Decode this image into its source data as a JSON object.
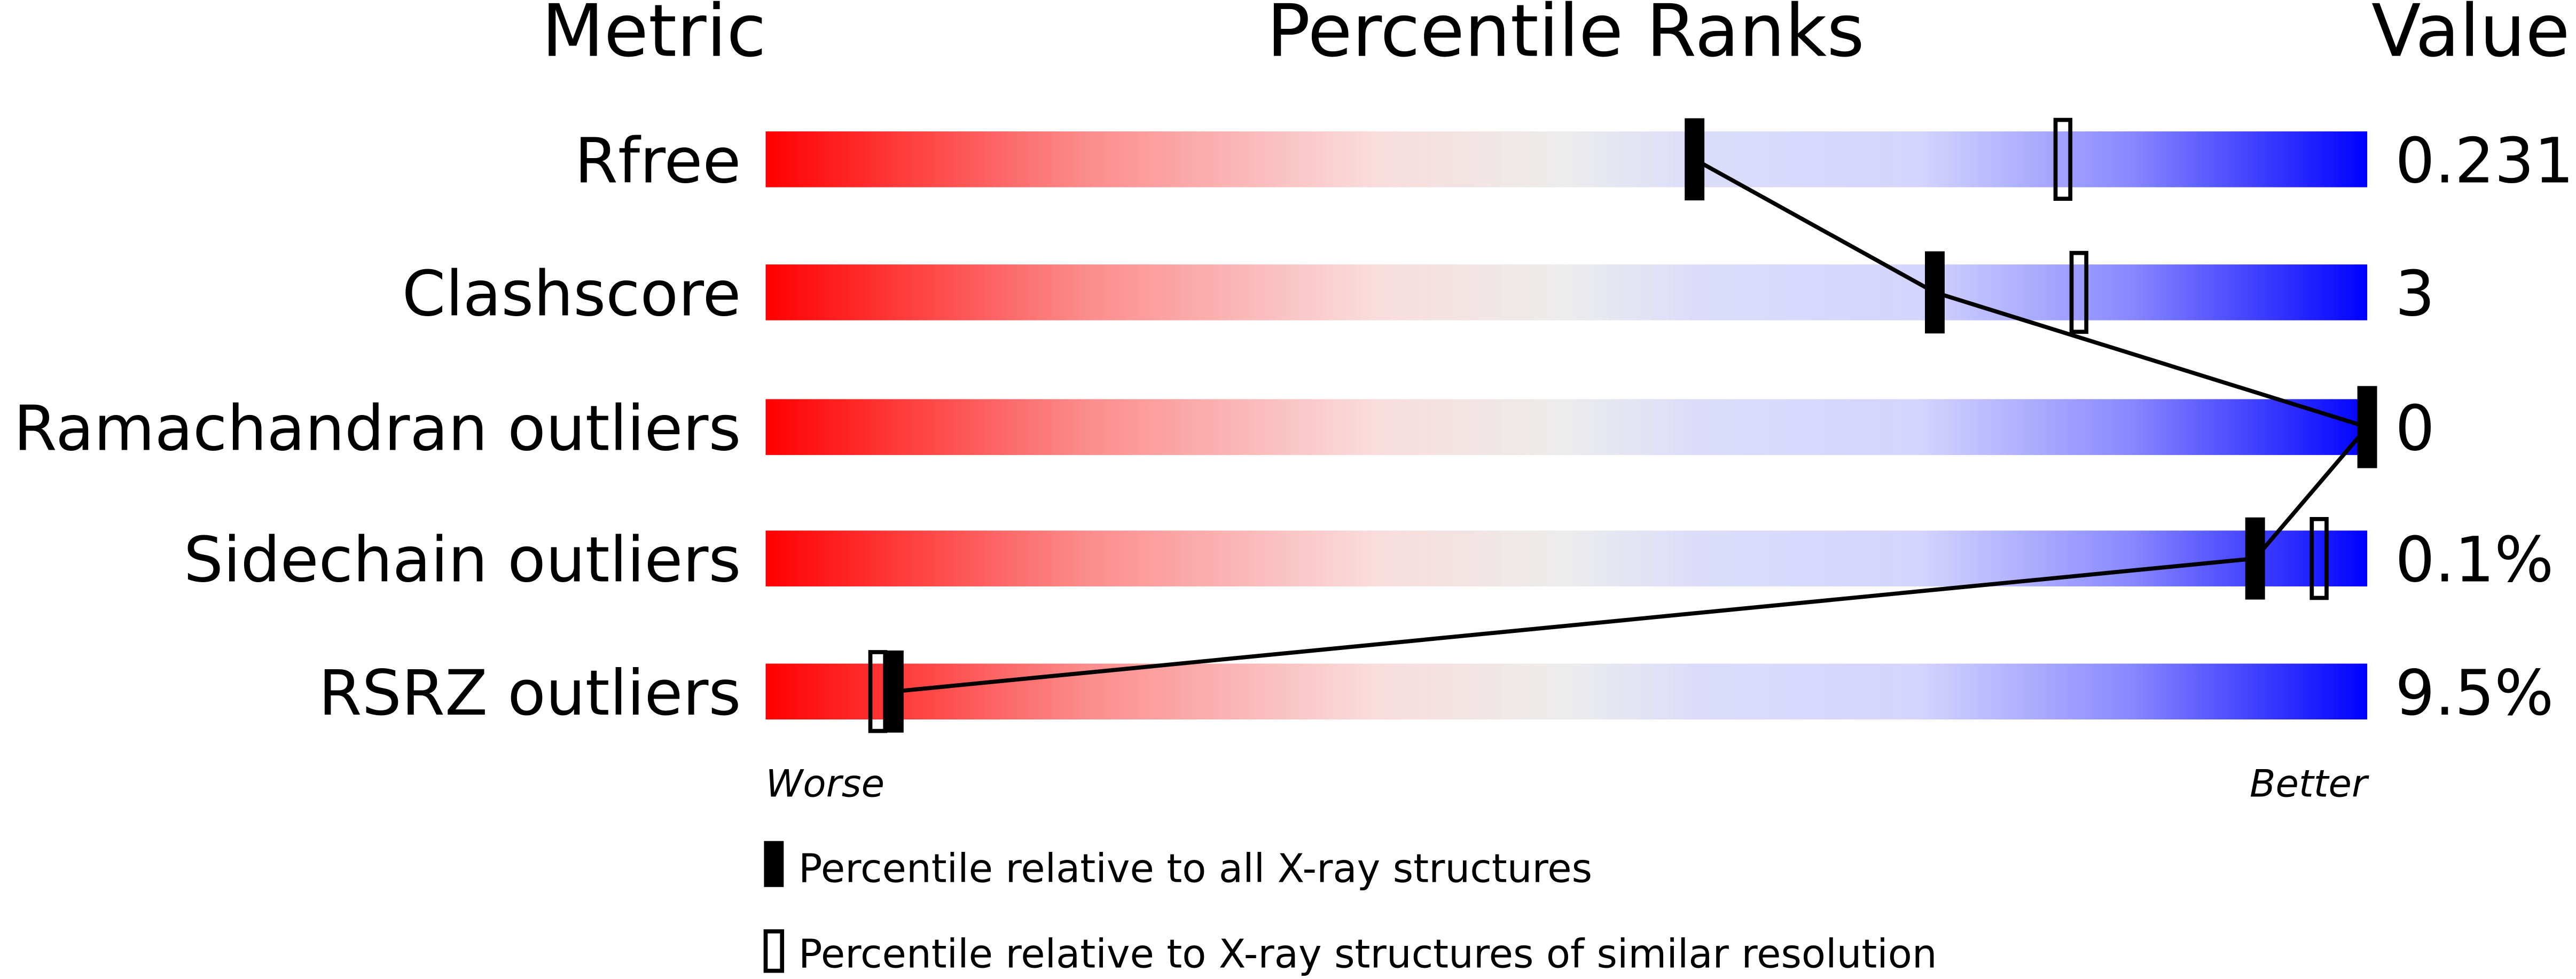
{
  "chart_data": {
    "type": "bar",
    "headers": {
      "metric": "Metric",
      "ranks": "Percentile Ranks",
      "value": "Value"
    },
    "xlim": [
      0,
      100
    ],
    "axis_labels": {
      "left": "Worse",
      "right": "Better"
    },
    "metrics": [
      {
        "name": "Rfree",
        "value": "0.231",
        "percentile_all": 58,
        "percentile_similar": 81
      },
      {
        "name": "Clashscore",
        "value": "3",
        "percentile_all": 73,
        "percentile_similar": 82
      },
      {
        "name": "Ramachandran outliers",
        "value": "0",
        "percentile_all": 100,
        "percentile_similar": null
      },
      {
        "name": "Sidechain outliers",
        "value": "0.1%",
        "percentile_all": 93,
        "percentile_similar": 97
      },
      {
        "name": "RSRZ outliers",
        "value": "9.5%",
        "percentile_all": 8,
        "percentile_similar": 7
      }
    ],
    "legend": {
      "all": "Percentile relative to all X-ray structures",
      "similar": "Percentile relative to X-ray structures of similar resolution"
    },
    "colors": {
      "worse": "#ff0000",
      "middle": "#eeeeee",
      "better": "#0000ff",
      "marker": "#000000"
    }
  }
}
